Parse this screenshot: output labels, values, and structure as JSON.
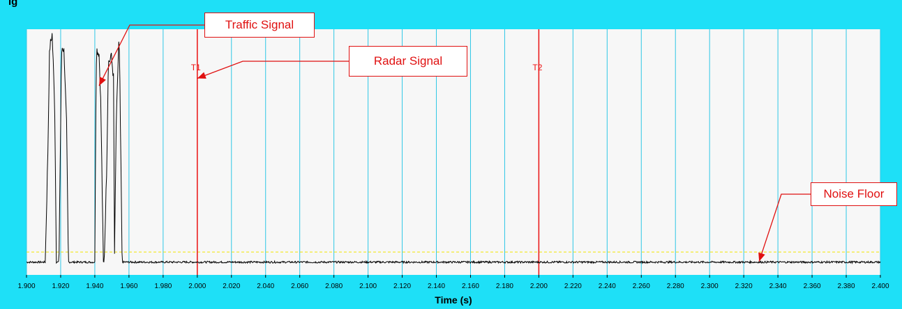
{
  "colors": {
    "frame": "#1ee0f7",
    "plot_background": "#f7f7f7",
    "grid": "#2fc7e6",
    "trace": "#000000",
    "marker": "#ee1111",
    "threshold": "#f2e300",
    "callout": "#e01010"
  },
  "title_fragment": "ig",
  "chart_data": {
    "type": "line",
    "title": "",
    "xlabel": "Time (s)",
    "ylabel": "",
    "xlim": [
      1.9,
      2.4
    ],
    "ylim": [
      0,
      1
    ],
    "grid": true,
    "x_ticks": [
      "1.900",
      "1.920",
      "1.940",
      "1.960",
      "1.980",
      "2.000",
      "2.020",
      "2.040",
      "2.060",
      "2.080",
      "2.100",
      "2.120",
      "2.140",
      "2.160",
      "2.180",
      "2.200",
      "2.220",
      "2.240",
      "2.260",
      "2.280",
      "2.300",
      "2.320",
      "2.340",
      "2.360",
      "2.380",
      "2.400"
    ],
    "x_tick_values": [
      1.9,
      1.92,
      1.94,
      1.96,
      1.98,
      2.0,
      2.02,
      2.04,
      2.06,
      2.08,
      2.1,
      2.12,
      2.14,
      2.16,
      2.18,
      2.2,
      2.22,
      2.24,
      2.26,
      2.28,
      2.3,
      2.32,
      2.34,
      2.36,
      2.38,
      2.4
    ],
    "series": [
      {
        "x": [
          1.9,
          1.911,
          1.9125,
          1.9135,
          1.915,
          1.9165,
          1.9175,
          1.919,
          1.9205,
          1.921,
          1.922,
          1.9235,
          1.9245,
          1.926,
          1.94,
          1.9405,
          1.941,
          1.9425,
          1.9435,
          1.945,
          1.9455,
          1.947,
          1.948,
          1.9485,
          1.9495,
          1.951,
          1.9515,
          1.9525,
          1.954,
          1.9545,
          1.956,
          2.0,
          2.1,
          2.2,
          2.3,
          2.4
        ],
        "y": [
          0.052,
          0.052,
          0.5,
          0.92,
          0.98,
          0.7,
          0.052,
          0.052,
          0.9,
          0.93,
          0.91,
          0.6,
          0.052,
          0.052,
          0.052,
          0.6,
          0.92,
          0.9,
          0.7,
          0.052,
          0.052,
          0.45,
          0.9,
          0.86,
          0.9,
          0.8,
          0.052,
          0.6,
          0.95,
          0.88,
          0.052,
          0.052,
          0.052,
          0.052,
          0.052,
          0.052
        ],
        "noise": 0.004
      }
    ],
    "threshold": 0.093,
    "markers": [
      {
        "x": 2.0,
        "label": "T1"
      },
      {
        "x": 2.2,
        "label": "T2"
      }
    ]
  },
  "annotations": {
    "traffic": {
      "text": "Traffic Signal",
      "target_x": 1.9425,
      "target_y": 0.77
    },
    "radar": {
      "text": "Radar Signal",
      "target_x": 2.0,
      "target_y": 0.8
    },
    "noise": {
      "text": "Noise Floor",
      "target_x": 2.329,
      "target_y": 0.055
    }
  }
}
